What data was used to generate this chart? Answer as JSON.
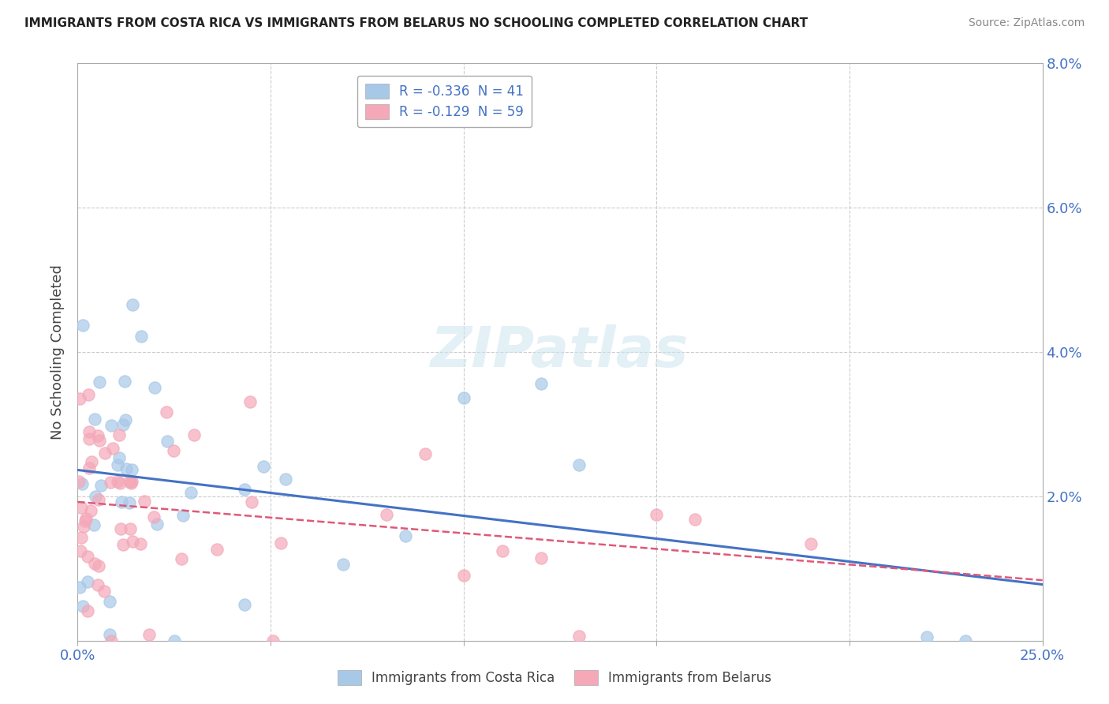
{
  "title": "IMMIGRANTS FROM COSTA RICA VS IMMIGRANTS FROM BELARUS NO SCHOOLING COMPLETED CORRELATION CHART",
  "source": "Source: ZipAtlas.com",
  "ylabel": "No Schooling Completed",
  "xlim": [
    0.0,
    0.25
  ],
  "ylim": [
    0.0,
    0.08
  ],
  "xticks": [
    0.0,
    0.05,
    0.1,
    0.15,
    0.2,
    0.25
  ],
  "xticklabels": [
    "0.0%",
    "",
    "",
    "",
    "",
    "25.0%"
  ],
  "yticks": [
    0.0,
    0.02,
    0.04,
    0.06,
    0.08
  ],
  "yticklabels_right": [
    "",
    "2.0%",
    "4.0%",
    "6.0%",
    "8.0%"
  ],
  "legend1_label": "R = -0.336  N = 41",
  "legend2_label": "R = -0.129  N = 59",
  "series1_color": "#a8c8e8",
  "series2_color": "#f4a8b8",
  "series1_line_color": "#4472C4",
  "series2_line_color": "#e05878",
  "watermark_text": "ZIPatlas",
  "bottom_label1": "Immigrants from Costa Rica",
  "bottom_label2": "Immigrants from Belarus"
}
